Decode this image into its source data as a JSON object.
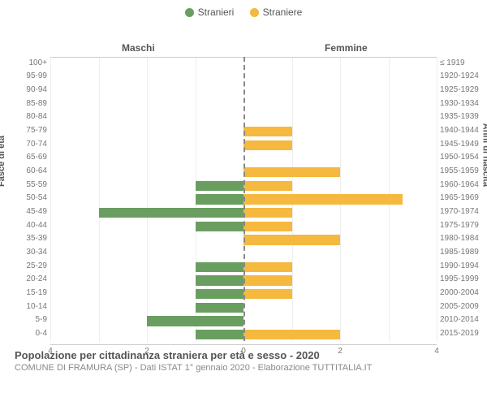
{
  "legend": {
    "male": {
      "label": "Stranieri",
      "color": "#6a9e61"
    },
    "female": {
      "label": "Straniere",
      "color": "#f5b93f"
    }
  },
  "headers": {
    "left": "Maschi",
    "right": "Femmine"
  },
  "axis_titles": {
    "left": "Fasce di età",
    "right": "Anni di nascita"
  },
  "chart": {
    "type": "population-pyramid",
    "xmax": 4,
    "xticks_left": [
      4,
      2,
      0
    ],
    "xticks_right": [
      0,
      2,
      4
    ],
    "grid_step": 1,
    "bar_color_male": "#6a9e61",
    "bar_color_female": "#f5b93f",
    "background_color": "#ffffff",
    "grid_color": "#eeeeee",
    "border_color": "#cccccc",
    "rows": [
      {
        "age": "100+",
        "birth": "≤ 1919",
        "m": 0,
        "f": 0
      },
      {
        "age": "95-99",
        "birth": "1920-1924",
        "m": 0,
        "f": 0
      },
      {
        "age": "90-94",
        "birth": "1925-1929",
        "m": 0,
        "f": 0
      },
      {
        "age": "85-89",
        "birth": "1930-1934",
        "m": 0,
        "f": 0
      },
      {
        "age": "80-84",
        "birth": "1935-1939",
        "m": 0,
        "f": 0
      },
      {
        "age": "75-79",
        "birth": "1940-1944",
        "m": 0,
        "f": 1
      },
      {
        "age": "70-74",
        "birth": "1945-1949",
        "m": 0,
        "f": 1
      },
      {
        "age": "65-69",
        "birth": "1950-1954",
        "m": 0,
        "f": 0
      },
      {
        "age": "60-64",
        "birth": "1955-1959",
        "m": 0,
        "f": 2
      },
      {
        "age": "55-59",
        "birth": "1960-1964",
        "m": 1,
        "f": 1
      },
      {
        "age": "50-54",
        "birth": "1965-1969",
        "m": 1,
        "f": 3.3
      },
      {
        "age": "45-49",
        "birth": "1970-1974",
        "m": 3,
        "f": 1
      },
      {
        "age": "40-44",
        "birth": "1975-1979",
        "m": 1,
        "f": 1
      },
      {
        "age": "35-39",
        "birth": "1980-1984",
        "m": 0,
        "f": 2
      },
      {
        "age": "30-34",
        "birth": "1985-1989",
        "m": 0,
        "f": 0
      },
      {
        "age": "25-29",
        "birth": "1990-1994",
        "m": 1,
        "f": 1
      },
      {
        "age": "20-24",
        "birth": "1995-1999",
        "m": 1,
        "f": 1
      },
      {
        "age": "15-19",
        "birth": "2000-2004",
        "m": 1,
        "f": 1
      },
      {
        "age": "10-14",
        "birth": "2005-2009",
        "m": 1,
        "f": 0
      },
      {
        "age": "5-9",
        "birth": "2010-2014",
        "m": 2,
        "f": 0
      },
      {
        "age": "0-4",
        "birth": "2015-2019",
        "m": 1,
        "f": 2
      }
    ]
  },
  "footer": {
    "title": "Popolazione per cittadinanza straniera per età e sesso - 2020",
    "subtitle": "COMUNE DI FRAMURA (SP) - Dati ISTAT 1° gennaio 2020 - Elaborazione TUTTITALIA.IT"
  }
}
